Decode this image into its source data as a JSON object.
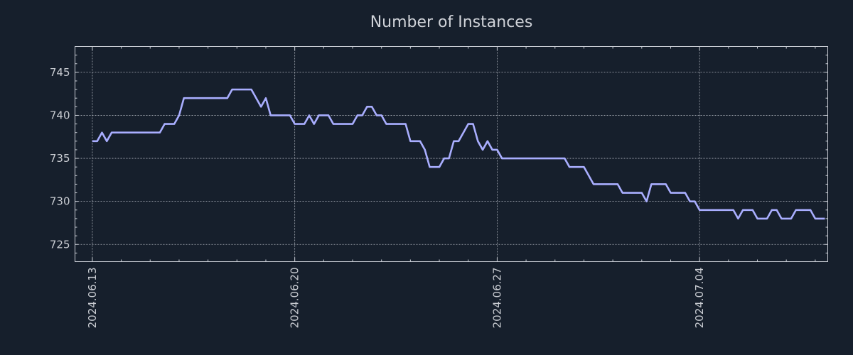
{
  "chart_data": {
    "type": "line",
    "title": "Number of Instances",
    "xlabel": "",
    "ylabel": "",
    "xlim": [
      -3.6,
      152.6
    ],
    "ylim": [
      723,
      748
    ],
    "yticks": [
      725,
      730,
      735,
      740,
      745
    ],
    "xticks": [
      {
        "label": "2024.06.13",
        "x": 0
      },
      {
        "label": "2024.06.20",
        "x": 42
      },
      {
        "label": "2024.06.27",
        "x": 84
      },
      {
        "label": "2024.07.04",
        "x": 126
      }
    ],
    "grid": true,
    "colors": {
      "background": "#161f2c",
      "line": "#a9aeff"
    },
    "series": [
      {
        "name": "Number of Instances",
        "x": [
          0,
          1,
          2,
          3,
          4,
          5,
          6,
          7,
          8,
          9,
          10,
          11,
          12,
          13,
          14,
          15,
          16,
          17,
          18,
          19,
          20,
          21,
          22,
          23,
          24,
          25,
          26,
          27,
          28,
          29,
          30,
          31,
          32,
          33,
          34,
          35,
          36,
          37,
          38,
          39,
          40,
          41,
          42,
          43,
          44,
          45,
          46,
          47,
          48,
          49,
          50,
          51,
          52,
          53,
          54,
          55,
          56,
          57,
          58,
          59,
          60,
          61,
          62,
          63,
          64,
          65,
          66,
          67,
          68,
          69,
          70,
          71,
          72,
          73,
          74,
          75,
          76,
          77,
          78,
          79,
          80,
          81,
          82,
          83,
          84,
          85,
          86,
          87,
          88,
          89,
          90,
          91,
          92,
          93,
          94,
          95,
          96,
          97,
          98,
          99,
          100,
          101,
          102,
          103,
          104,
          105,
          106,
          107,
          108,
          109,
          110,
          111,
          112,
          113,
          114,
          115,
          116,
          117,
          118,
          119,
          120,
          121,
          122,
          123,
          124,
          125,
          126,
          127,
          128,
          129,
          130,
          131,
          132,
          133,
          134,
          135,
          136,
          137,
          138,
          139,
          140,
          141,
          142,
          143,
          144,
          145,
          146,
          147,
          148,
          149,
          150,
          151,
          152
        ],
        "values": [
          737,
          737,
          738,
          737,
          738,
          738,
          738,
          738,
          738,
          738,
          738,
          738,
          738,
          738,
          738,
          739,
          739,
          739,
          740,
          742,
          742,
          742,
          742,
          742,
          742,
          742,
          742,
          742,
          742,
          743,
          743,
          743,
          743,
          743,
          742,
          741,
          742,
          740,
          740,
          740,
          740,
          740,
          739,
          739,
          739,
          740,
          739,
          740,
          740,
          740,
          739,
          739,
          739,
          739,
          739,
          740,
          740,
          741,
          741,
          740,
          740,
          739,
          739,
          739,
          739,
          739,
          737,
          737,
          737,
          736,
          734,
          734,
          734,
          735,
          735,
          737,
          737,
          738,
          739,
          739,
          737,
          736,
          737,
          736,
          736,
          735,
          735,
          735,
          735,
          735,
          735,
          735,
          735,
          735,
          735,
          735,
          735,
          735,
          735,
          734,
          734,
          734,
          734,
          733,
          732,
          732,
          732,
          732,
          732,
          732,
          731,
          731,
          731,
          731,
          731,
          730,
          732,
          732,
          732,
          732,
          731,
          731,
          731,
          731,
          730,
          730,
          729,
          729,
          729,
          729,
          729,
          729,
          729,
          729,
          728,
          729,
          729,
          729,
          728,
          728,
          728,
          729,
          729,
          728,
          728,
          728,
          729,
          729,
          729,
          729,
          728,
          728,
          728
        ]
      }
    ]
  }
}
